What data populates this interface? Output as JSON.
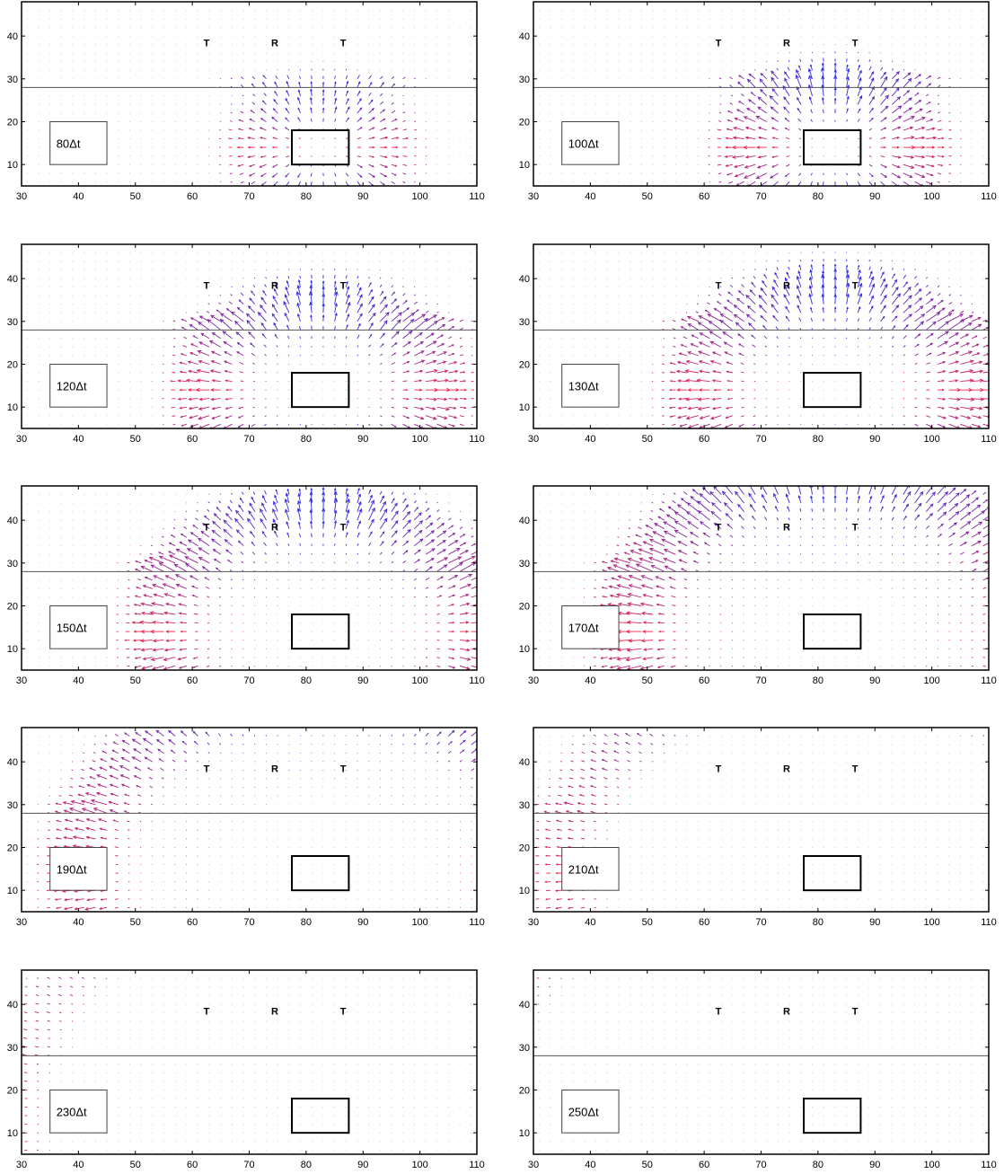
{
  "chart_data": {
    "type": "quiver",
    "title": "",
    "xlabel": "",
    "ylabel": "",
    "xlim": [
      30,
      110
    ],
    "ylim": [
      5,
      48
    ],
    "xticks": [
      30,
      40,
      50,
      60,
      70,
      80,
      90,
      100,
      110
    ],
    "yticks": [
      10,
      20,
      30,
      40
    ],
    "grid": false,
    "interface_y": 28,
    "source_box": {
      "x": [
        77.5,
        87.5
      ],
      "y": [
        10,
        18
      ]
    },
    "markers": [
      {
        "label": "T",
        "x": 62.5,
        "y": 38.5
      },
      {
        "label": "R",
        "x": 74.5,
        "y": 38.5
      },
      {
        "label": "T",
        "x": 86.5,
        "y": 38.5
      }
    ],
    "colors": {
      "up": "#2a2ae6",
      "lateral": "#f0204a",
      "frame": "#000000",
      "interface": "#555555"
    },
    "panels": [
      {
        "time_label": "80Δt",
        "front_radius": 11,
        "amp": 0.55
      },
      {
        "time_label": "100Δt",
        "front_radius": 14,
        "amp": 0.9
      },
      {
        "time_label": "120Δt",
        "front_radius": 20,
        "amp": 0.95
      },
      {
        "time_label": "130Δt",
        "front_radius": 23,
        "amp": 1.0
      },
      {
        "time_label": "150Δt",
        "front_radius": 28,
        "amp": 1.0
      },
      {
        "time_label": "170Δt",
        "front_radius": 35,
        "amp": 1.2
      },
      {
        "time_label": "190Δt",
        "front_radius": 42,
        "amp": 0.85
      },
      {
        "time_label": "210Δt",
        "front_radius": 48,
        "amp": 0.45
      },
      {
        "time_label": "230Δt",
        "front_radius": 55,
        "amp": 0.3
      },
      {
        "time_label": "250Δt",
        "front_radius": 62,
        "amp": 0.2
      }
    ]
  }
}
